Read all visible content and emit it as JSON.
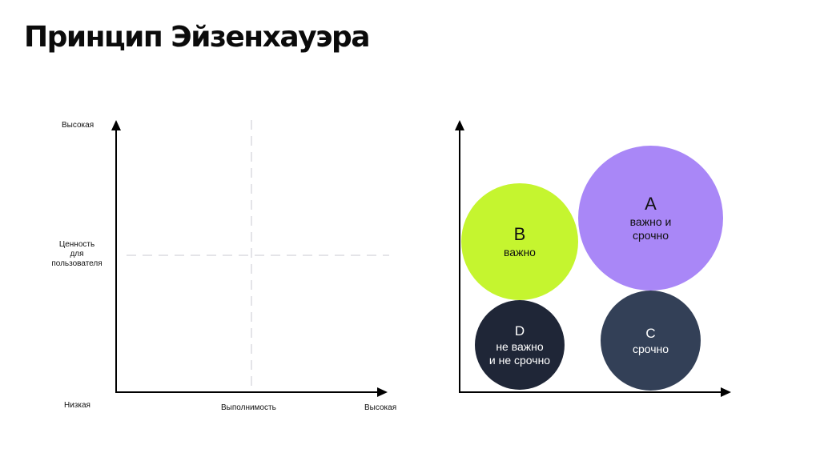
{
  "title": "Принцип Эйзенхауэра",
  "left_chart": {
    "y_axis": {
      "high_label": "Высокая",
      "mid_label_lines": [
        "Ценность",
        "для",
        "пользователя"
      ],
      "low_label": "Низкая"
    },
    "x_axis": {
      "mid_label": "Выполнимость",
      "high_label": "Высокая"
    }
  },
  "right_chart": {
    "quadrants": [
      {
        "id": "A",
        "letter": "A",
        "desc_lines": [
          "важно и",
          "срочно"
        ],
        "color": "#a987f7",
        "text_color": "#111111"
      },
      {
        "id": "B",
        "letter": "B",
        "desc_lines": [
          "важно"
        ],
        "color": "#c5f52f",
        "text_color": "#111111"
      },
      {
        "id": "C",
        "letter": "C",
        "desc_lines": [
          "срочно"
        ],
        "color": "#334057",
        "text_color": "#ffffff"
      },
      {
        "id": "D",
        "letter": "D",
        "desc_lines": [
          "не важно",
          "и не срочно"
        ],
        "color": "#1f2637",
        "text_color": "#ffffff"
      }
    ]
  },
  "colors": {
    "axis": "#000000",
    "dashed_guide": "#c9c9d2"
  }
}
